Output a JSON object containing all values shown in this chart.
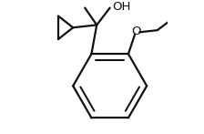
{
  "bg_color": "#ffffff",
  "line_color": "#111111",
  "line_width": 1.6,
  "font_size": 9.5,
  "oh_label": "OH",
  "o_label": "O",
  "bx": 0.58,
  "by": 0.38,
  "r": 0.28
}
